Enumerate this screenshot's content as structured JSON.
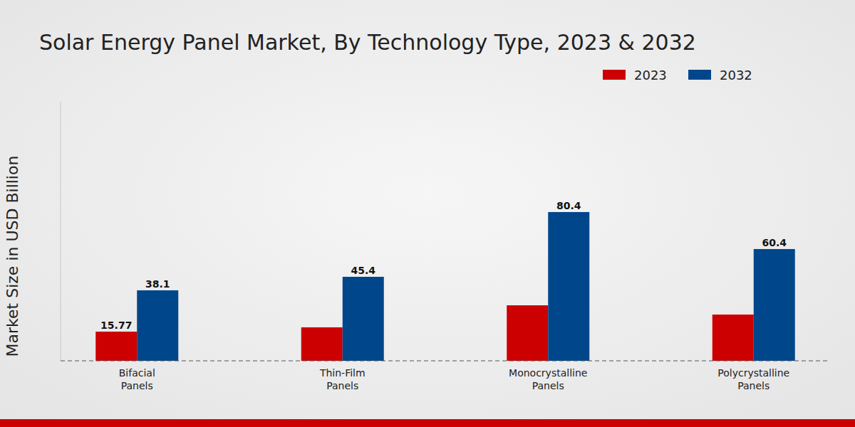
{
  "chart_data": {
    "type": "bar",
    "title": "Solar Energy Panel Market, By Technology Type, 2023 & 2032",
    "y_label": "Market Size in USD Billion",
    "categories": [
      "Bifacial Panels",
      "Thin-Film Panels",
      "Monocrystalline Panels",
      "Polycrystalline Panels"
    ],
    "series": [
      {
        "name": "2023",
        "color": "#cc0000",
        "values": [
          15.77,
          18.1,
          30.0,
          25.0
        ],
        "value_labels": [
          "15.77",
          null,
          null,
          null
        ]
      },
      {
        "name": "2032",
        "color": "#00468b",
        "values": [
          38.1,
          45.4,
          80.4,
          60.4
        ]
      }
    ],
    "ylim": [
      0,
      140
    ],
    "yticks": [],
    "grid": false,
    "legend": "top-right",
    "data_labels": true,
    "tick_labels": "x"
  }
}
